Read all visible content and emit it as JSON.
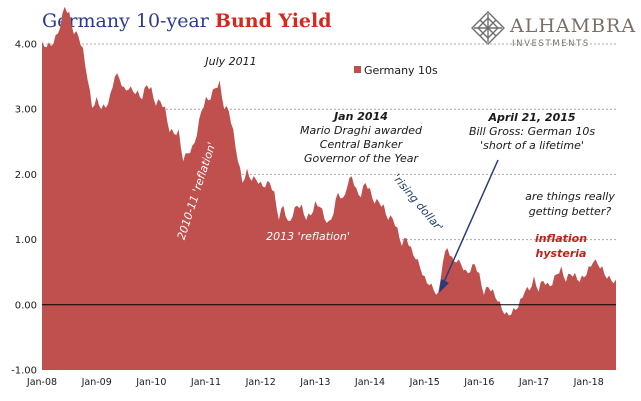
{
  "header": {
    "title_main": "Germany 10-year ",
    "title_accent": "Bund Yield"
  },
  "logo": {
    "name": "ALHAMBRA",
    "sub": "INVESTMENTS",
    "colors": {
      "name": "#7a6f68",
      "mark": "#6e6e6e"
    }
  },
  "colors": {
    "area_fill": "#c0504d",
    "white_text": "#ffffff",
    "dark_text": "#1a1a1a",
    "red_text": "#c0221b",
    "blue_text": "#1f3a6b",
    "axis_text": "#1a1a1a"
  },
  "chart_data": {
    "type": "area",
    "title": "Germany 10-year Bund Yield",
    "xlabel": "",
    "ylabel": "",
    "ylim": [
      -1.0,
      4.0
    ],
    "xlim": [
      "2008-01",
      "2018-07"
    ],
    "grid": true,
    "y_ticks": [
      "4.00",
      "3.00",
      "2.00",
      "1.00",
      "0.00",
      "-1.00"
    ],
    "x_ticks": [
      "Jan-08",
      "Jan-09",
      "Jan-10",
      "Jan-11",
      "Jan-12",
      "Jan-13",
      "Jan-14",
      "Jan-15",
      "Jan-16",
      "Jan-17",
      "Jan-18"
    ],
    "legend": {
      "position": "top-center",
      "entries": [
        "Germany 10s"
      ]
    },
    "series": [
      {
        "name": "Germany 10s",
        "x": [
          "2008-01",
          "2008-02",
          "2008-03",
          "2008-04",
          "2008-05",
          "2008-06",
          "2008-07",
          "2008-08",
          "2008-09",
          "2008-10",
          "2008-11",
          "2008-12",
          "2009-01",
          "2009-02",
          "2009-03",
          "2009-04",
          "2009-05",
          "2009-06",
          "2009-07",
          "2009-08",
          "2009-09",
          "2009-10",
          "2009-11",
          "2009-12",
          "2010-01",
          "2010-02",
          "2010-03",
          "2010-04",
          "2010-05",
          "2010-06",
          "2010-07",
          "2010-08",
          "2010-09",
          "2010-10",
          "2010-11",
          "2010-12",
          "2011-01",
          "2011-02",
          "2011-03",
          "2011-04",
          "2011-05",
          "2011-06",
          "2011-07",
          "2011-08",
          "2011-09",
          "2011-10",
          "2011-11",
          "2011-12",
          "2012-01",
          "2012-02",
          "2012-03",
          "2012-04",
          "2012-05",
          "2012-06",
          "2012-07",
          "2012-08",
          "2012-09",
          "2012-10",
          "2012-11",
          "2012-12",
          "2013-01",
          "2013-02",
          "2013-03",
          "2013-04",
          "2013-05",
          "2013-06",
          "2013-07",
          "2013-08",
          "2013-09",
          "2013-10",
          "2013-11",
          "2013-12",
          "2014-01",
          "2014-02",
          "2014-03",
          "2014-04",
          "2014-05",
          "2014-06",
          "2014-07",
          "2014-08",
          "2014-09",
          "2014-10",
          "2014-11",
          "2014-12",
          "2015-01",
          "2015-02",
          "2015-03",
          "2015-04",
          "2015-05",
          "2015-06",
          "2015-07",
          "2015-08",
          "2015-09",
          "2015-10",
          "2015-11",
          "2015-12",
          "2016-01",
          "2016-02",
          "2016-03",
          "2016-04",
          "2016-05",
          "2016-06",
          "2016-07",
          "2016-08",
          "2016-09",
          "2016-10",
          "2016-11",
          "2016-12",
          "2017-01",
          "2017-02",
          "2017-03",
          "2017-04",
          "2017-05",
          "2017-06",
          "2017-07",
          "2017-08",
          "2017-09",
          "2017-10",
          "2017-11",
          "2017-12",
          "2018-01",
          "2018-02",
          "2018-03",
          "2018-04",
          "2018-05",
          "2018-06",
          "2018-07"
        ],
        "values": [
          4.0,
          4.0,
          3.95,
          4.1,
          4.3,
          4.55,
          4.45,
          4.2,
          4.1,
          3.9,
          3.5,
          3.0,
          3.15,
          3.05,
          3.0,
          3.2,
          3.55,
          3.45,
          3.3,
          3.35,
          3.25,
          3.25,
          3.2,
          3.35,
          3.3,
          3.1,
          3.1,
          3.0,
          2.7,
          2.6,
          2.65,
          2.25,
          2.3,
          2.4,
          2.65,
          2.95,
          3.15,
          3.2,
          3.3,
          3.4,
          3.05,
          2.95,
          2.65,
          2.25,
          1.85,
          2.05,
          1.95,
          1.9,
          1.85,
          1.85,
          1.85,
          1.7,
          1.35,
          1.5,
          1.25,
          1.4,
          1.5,
          1.5,
          1.35,
          1.35,
          1.55,
          1.55,
          1.3,
          1.25,
          1.45,
          1.7,
          1.6,
          1.85,
          1.95,
          1.75,
          1.7,
          1.85,
          1.75,
          1.6,
          1.55,
          1.5,
          1.35,
          1.3,
          1.15,
          0.95,
          1.0,
          0.85,
          0.75,
          0.55,
          0.4,
          0.35,
          0.2,
          0.15,
          0.7,
          0.85,
          0.7,
          0.7,
          0.6,
          0.5,
          0.55,
          0.6,
          0.45,
          0.2,
          0.25,
          0.2,
          0.1,
          -0.1,
          -0.15,
          -0.1,
          -0.1,
          0.05,
          0.25,
          0.2,
          0.4,
          0.25,
          0.35,
          0.3,
          0.35,
          0.45,
          0.55,
          0.4,
          0.45,
          0.45,
          0.4,
          0.4,
          0.55,
          0.7,
          0.6,
          0.55,
          0.45,
          0.35,
          0.35
        ]
      }
    ],
    "annotations": [
      {
        "id": "july2011",
        "lines": [
          "July 2011"
        ],
        "color": "dark"
      },
      {
        "id": "reflation1",
        "lines": [
          "2010-11 'reflation'"
        ],
        "color": "white"
      },
      {
        "id": "reflation2",
        "lines": [
          "2013 'reflation'"
        ],
        "color": "white"
      },
      {
        "id": "jan2014",
        "lines": [
          "Jan 2014",
          "Mario Draghi awarded",
          "Central Banker",
          "Governor of the Year"
        ],
        "color": "dark"
      },
      {
        "id": "rising_dollar",
        "lines": [
          "'rising dollar'"
        ],
        "color": "blue"
      },
      {
        "id": "april2015",
        "lines": [
          "April 21, 2015",
          "Bill Gross: German 10s",
          "'short of a lifetime'"
        ],
        "color": "dark"
      },
      {
        "id": "better",
        "lines": [
          "are things really",
          "getting better?"
        ],
        "color": "dark"
      },
      {
        "id": "hysteria",
        "lines": [
          "inflation",
          "hysteria"
        ],
        "color": "red"
      }
    ]
  }
}
